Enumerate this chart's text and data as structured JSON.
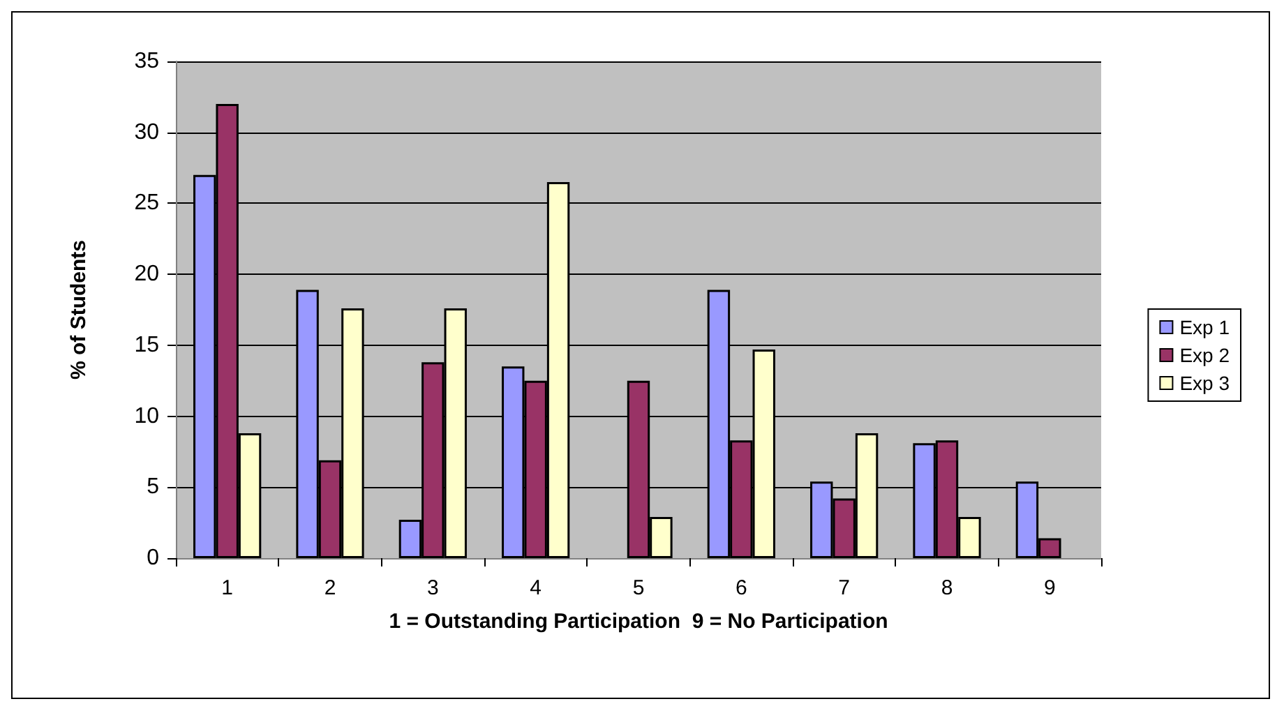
{
  "chart_data": {
    "type": "bar",
    "ylabel": "% of Students",
    "xlabel": "1 = Outstanding Participation  9 = No Participation",
    "categories": [
      "1",
      "2",
      "3",
      "4",
      "5",
      "6",
      "7",
      "8",
      "9"
    ],
    "series": [
      {
        "name": "Exp 1",
        "color": "#9999ff",
        "values": [
          27,
          18.9,
          2.7,
          13.5,
          null,
          18.9,
          5.4,
          8.1,
          5.4
        ]
      },
      {
        "name": "Exp 2",
        "color": "#993366",
        "values": [
          32,
          6.9,
          13.8,
          12.5,
          12.5,
          8.3,
          4.2,
          8.3,
          1.4
        ]
      },
      {
        "name": "Exp 3",
        "color": "#ffffcc",
        "values": [
          8.8,
          17.6,
          17.6,
          26.5,
          2.9,
          14.7,
          8.8,
          2.9,
          null
        ]
      }
    ],
    "ylim": [
      0,
      35
    ],
    "yticks": [
      0,
      5,
      10,
      15,
      20,
      25,
      30,
      35
    ],
    "grid": "y",
    "legend": "right"
  }
}
